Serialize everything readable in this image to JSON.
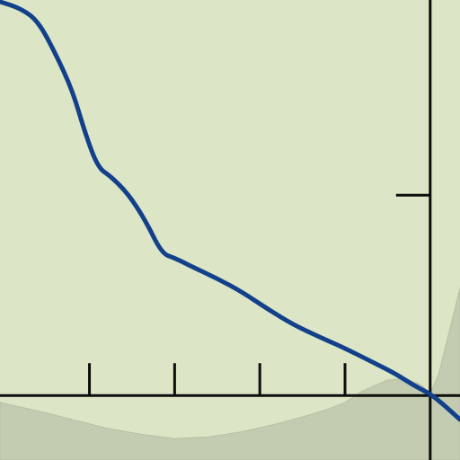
{
  "colors": {
    "background": "#dce6c6",
    "shaded_region": "#c3cbb0",
    "shaded_edge": "#b7c0a3",
    "axis": "#0d0d0d",
    "curve": "#13408a"
  },
  "chart_data": {
    "type": "line",
    "title": "",
    "xlabel": "",
    "ylabel": "",
    "xlim": [
      -5.05,
      0.35
    ],
    "ylim": [
      -0.75,
      4.6
    ],
    "grid": false,
    "legend": "none",
    "x_ticks": [
      -4,
      -3,
      -2,
      -1,
      0
    ],
    "y_ticks": [
      0,
      2.33
    ],
    "series": [
      {
        "color": "#13408a",
        "x": [
          -5.05,
          -4.8,
          -4.6,
          -4.4,
          -4.2,
          -4.05,
          -3.9,
          -3.75,
          -3.55,
          -3.35,
          -3.15,
          -3.0,
          -2.8,
          -2.5,
          -2.2,
          -1.9,
          -1.6,
          -1.3,
          -1.0,
          -0.7,
          -0.4,
          -0.2,
          0.0,
          0.15,
          0.35
        ],
        "y": [
          4.58,
          4.5,
          4.35,
          3.98,
          3.55,
          3.05,
          2.65,
          2.55,
          2.35,
          2.05,
          1.65,
          1.6,
          1.5,
          1.36,
          1.2,
          1.0,
          0.82,
          0.68,
          0.55,
          0.4,
          0.25,
          0.12,
          0.02,
          -0.1,
          -0.28
        ]
      }
    ],
    "shaded_band": {
      "x": [
        -5.05,
        -4.6,
        -4.2,
        -3.8,
        -3.4,
        -3.0,
        -2.6,
        -2.2,
        -1.8,
        -1.5,
        -1.2,
        -1.0,
        -0.8,
        -0.5,
        -0.3,
        -0.1,
        0.0,
        0.1,
        0.2,
        0.3,
        0.35
      ],
      "y": [
        -0.08,
        -0.18,
        -0.28,
        -0.38,
        -0.45,
        -0.5,
        -0.48,
        -0.42,
        -0.33,
        -0.25,
        -0.16,
        -0.08,
        0.05,
        0.18,
        0.2,
        0.12,
        0.02,
        0.25,
        0.65,
        1.05,
        1.25
      ]
    }
  }
}
